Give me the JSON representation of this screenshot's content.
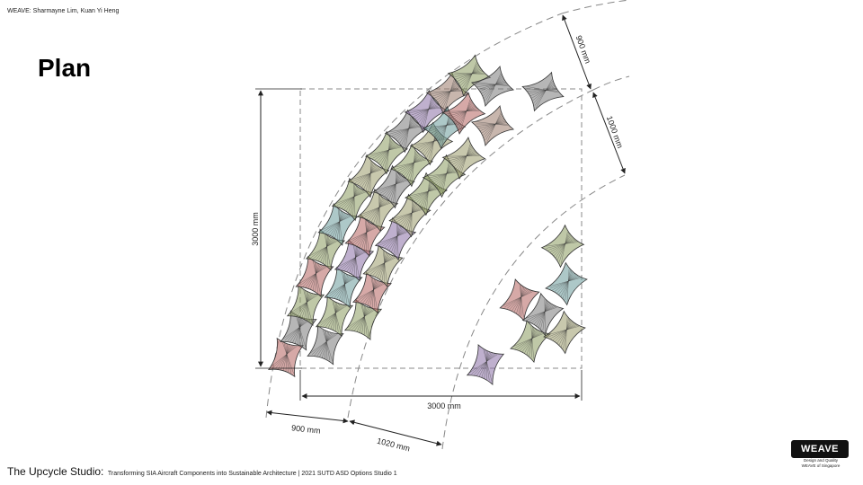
{
  "header": {
    "credit": "WEAVE: Sharmayne Lim, Kuan Yi Heng"
  },
  "page_title": "Plan",
  "dimensions": {
    "height": "3000 mm",
    "width": "3000 mm",
    "inner_band": "900 mm",
    "second_band": "1020 mm",
    "top_band": "900 mm",
    "right_band": "1000 mm"
  },
  "footer": {
    "studio": "The Upcycle Studio:",
    "subtitle": "Transforming SIA Aircraft Components into Sustainable Architecture | 2021 SUTD ASD Options Studio 1"
  },
  "logo": {
    "name": "WEAVE",
    "line1": "Design and Quality",
    "line2": "WEAVE of Singapore"
  },
  "colors": {
    "red": "#b5635f",
    "green": "#8a9a5f",
    "purple": "#8a6fa5",
    "teal": "#6a9a9a",
    "grey": "#7a7a7a",
    "olive": "#9a9a6a",
    "brown": "#9a7a6a"
  }
}
